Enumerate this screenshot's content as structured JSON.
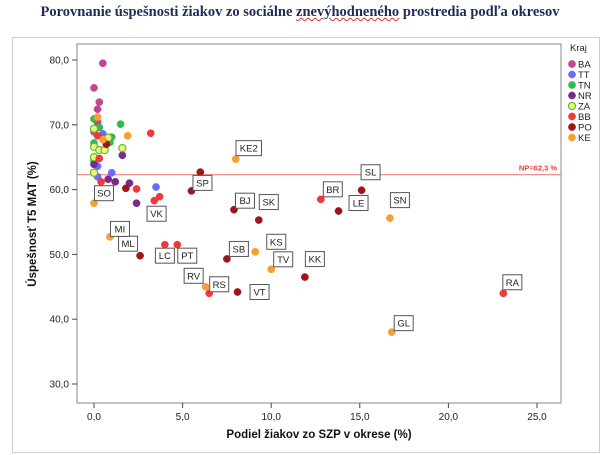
{
  "title_parts": [
    "Porovnanie úspešnosti žiakov zo sociálne ",
    "znevýhodneného",
    " prostredia podľa okresov"
  ],
  "chart_data": {
    "type": "scatter",
    "title": "Porovnanie úspešnosti žiakov zo sociálne znevýhodneného prostredia podľa okresov",
    "xlabel": "Podiel žiakov zo SZP v okrese (%)",
    "ylabel": "Úspešnosť T5 MAT (%)",
    "xlim": [
      -1,
      26
    ],
    "ylim": [
      27,
      82
    ],
    "xticks": [
      "0,0",
      "5,0",
      "10,0",
      "15,0",
      "20,0",
      "25,0"
    ],
    "yticks": [
      "30,0",
      "40,0",
      "50,0",
      "60,0",
      "70,0",
      "80,0"
    ],
    "grid": false,
    "legend_title": "Kraj",
    "legend_position": "right",
    "groups": [
      {
        "name": "BA",
        "color": "#c0468f"
      },
      {
        "name": "TT",
        "color": "#6b6bff"
      },
      {
        "name": "TN",
        "color": "#2fbb4f"
      },
      {
        "name": "NR",
        "color": "#7a2a8f"
      },
      {
        "name": "ZA",
        "color": "#eef57a"
      },
      {
        "name": "BB",
        "color": "#ee3a3a"
      },
      {
        "name": "PO",
        "color": "#a0141c"
      },
      {
        "name": "KE",
        "color": "#f5a030"
      }
    ],
    "reference_line": {
      "y": 62.3,
      "label": "NP=62,3 %",
      "color": "#f08080"
    },
    "points": [
      {
        "x": 0.5,
        "y": 79.5,
        "kraj": "BA"
      },
      {
        "x": 0.0,
        "y": 75.7,
        "kraj": "BA"
      },
      {
        "x": 0.3,
        "y": 73.5,
        "kraj": "BA"
      },
      {
        "x": 0.2,
        "y": 72.4,
        "kraj": "BA"
      },
      {
        "x": 0.2,
        "y": 70.4,
        "kraj": "BA"
      },
      {
        "x": 0.0,
        "y": 68.9,
        "kraj": "BA"
      },
      {
        "x": 0.5,
        "y": 68.6,
        "kraj": "TT"
      },
      {
        "x": 0.2,
        "y": 63.6,
        "kraj": "TT"
      },
      {
        "x": 0.2,
        "y": 62.0,
        "kraj": "TT"
      },
      {
        "x": 1.0,
        "y": 62.6,
        "kraj": "TT"
      },
      {
        "x": 3.5,
        "y": 60.4,
        "kraj": "TT"
      },
      {
        "x": 0.0,
        "y": 70.9,
        "kraj": "TN"
      },
      {
        "x": 0.3,
        "y": 69.6,
        "kraj": "TN"
      },
      {
        "x": 1.5,
        "y": 70.1,
        "kraj": "TN"
      },
      {
        "x": 1.0,
        "y": 68.1,
        "kraj": "TN"
      },
      {
        "x": 0.0,
        "y": 67.2,
        "kraj": "TN"
      },
      {
        "x": 0.9,
        "y": 67.3,
        "kraj": "TN"
      },
      {
        "x": 0.0,
        "y": 64.4,
        "kraj": "TN"
      },
      {
        "x": 1.6,
        "y": 65.3,
        "kraj": "NR"
      },
      {
        "x": 0.0,
        "y": 63.9,
        "kraj": "NR"
      },
      {
        "x": 0.8,
        "y": 61.6,
        "kraj": "NR"
      },
      {
        "x": 1.2,
        "y": 61.2,
        "kraj": "NR"
      },
      {
        "x": 2.0,
        "y": 61.0,
        "kraj": "NR"
      },
      {
        "x": 2.4,
        "y": 57.9,
        "kraj": "NR"
      },
      {
        "x": 0.0,
        "y": 69.4,
        "kraj": "ZA"
      },
      {
        "x": 0.8,
        "y": 68.0,
        "kraj": "ZA"
      },
      {
        "x": 0.0,
        "y": 66.6,
        "kraj": "ZA"
      },
      {
        "x": 0.3,
        "y": 66.1,
        "kraj": "ZA"
      },
      {
        "x": 0.6,
        "y": 66.1,
        "kraj": "ZA"
      },
      {
        "x": 1.6,
        "y": 66.4,
        "kraj": "ZA"
      },
      {
        "x": 0.0,
        "y": 65.0,
        "kraj": "ZA"
      },
      {
        "x": 0.0,
        "y": 62.6,
        "kraj": "ZA"
      },
      {
        "x": 0.2,
        "y": 68.3,
        "kraj": "BB"
      },
      {
        "x": 3.2,
        "y": 68.7,
        "kraj": "BB"
      },
      {
        "x": 0.3,
        "y": 64.8,
        "kraj": "BB"
      },
      {
        "x": 0.4,
        "y": 61.2,
        "kraj": "BB"
      },
      {
        "x": 2.4,
        "y": 60.1,
        "kraj": "BB"
      },
      {
        "x": 3.4,
        "y": 58.3,
        "kraj": "BB"
      },
      {
        "x": 3.7,
        "y": 58.9,
        "kraj": "BB",
        "label": "VK"
      },
      {
        "x": 4.0,
        "y": 51.5,
        "kraj": "BB",
        "label": "LC"
      },
      {
        "x": 4.7,
        "y": 51.5,
        "kraj": "BB",
        "label": "PT"
      },
      {
        "x": 12.8,
        "y": 58.5,
        "kraj": "BB",
        "label": "BR"
      },
      {
        "x": 6.5,
        "y": 44.0,
        "kraj": "BB",
        "label": "RS"
      },
      {
        "x": 23.1,
        "y": 44.0,
        "kraj": "BB",
        "label": "RA"
      },
      {
        "x": 0.7,
        "y": 67.0,
        "kraj": "PO"
      },
      {
        "x": 1.8,
        "y": 60.2,
        "kraj": "PO"
      },
      {
        "x": 6.0,
        "y": 62.7,
        "kraj": "PO"
      },
      {
        "x": 5.5,
        "y": 59.8,
        "kraj": "PO",
        "label": "SP"
      },
      {
        "x": 7.9,
        "y": 56.9,
        "kraj": "PO",
        "label": "BJ"
      },
      {
        "x": 9.3,
        "y": 55.3,
        "kraj": "PO",
        "label": "SK"
      },
      {
        "x": 15.1,
        "y": 59.9,
        "kraj": "PO",
        "label": "SL"
      },
      {
        "x": 13.8,
        "y": 56.7,
        "kraj": "PO",
        "label": "LE"
      },
      {
        "x": 7.5,
        "y": 49.3,
        "kraj": "PO",
        "label": "SB"
      },
      {
        "x": 11.9,
        "y": 46.5,
        "kraj": "PO",
        "label": "KK"
      },
      {
        "x": 8.1,
        "y": 44.2,
        "kraj": "PO",
        "label": "VT"
      },
      {
        "x": 2.6,
        "y": 49.8,
        "kraj": "PO",
        "label": "ML"
      },
      {
        "x": 0.2,
        "y": 71.2,
        "kraj": "KE"
      },
      {
        "x": 1.9,
        "y": 68.3,
        "kraj": "KE"
      },
      {
        "x": 0.5,
        "y": 67.7,
        "kraj": "KE"
      },
      {
        "x": 8.0,
        "y": 64.7,
        "kraj": "KE",
        "label": "KE2"
      },
      {
        "x": 16.7,
        "y": 55.6,
        "kraj": "KE",
        "label": "SN"
      },
      {
        "x": 9.1,
        "y": 50.4,
        "kraj": "KE",
        "label": "KS"
      },
      {
        "x": 10.0,
        "y": 47.7,
        "kraj": "KE",
        "label": "TV"
      },
      {
        "x": 6.3,
        "y": 45.0,
        "kraj": "KE",
        "label": "RV"
      },
      {
        "x": 16.8,
        "y": 38.0,
        "kraj": "KE",
        "label": "GL"
      },
      {
        "x": 0.9,
        "y": 52.7,
        "kraj": "KE",
        "label": "MI"
      },
      {
        "x": 0.0,
        "y": 57.9,
        "kraj": "KE",
        "label": "SO"
      }
    ]
  }
}
